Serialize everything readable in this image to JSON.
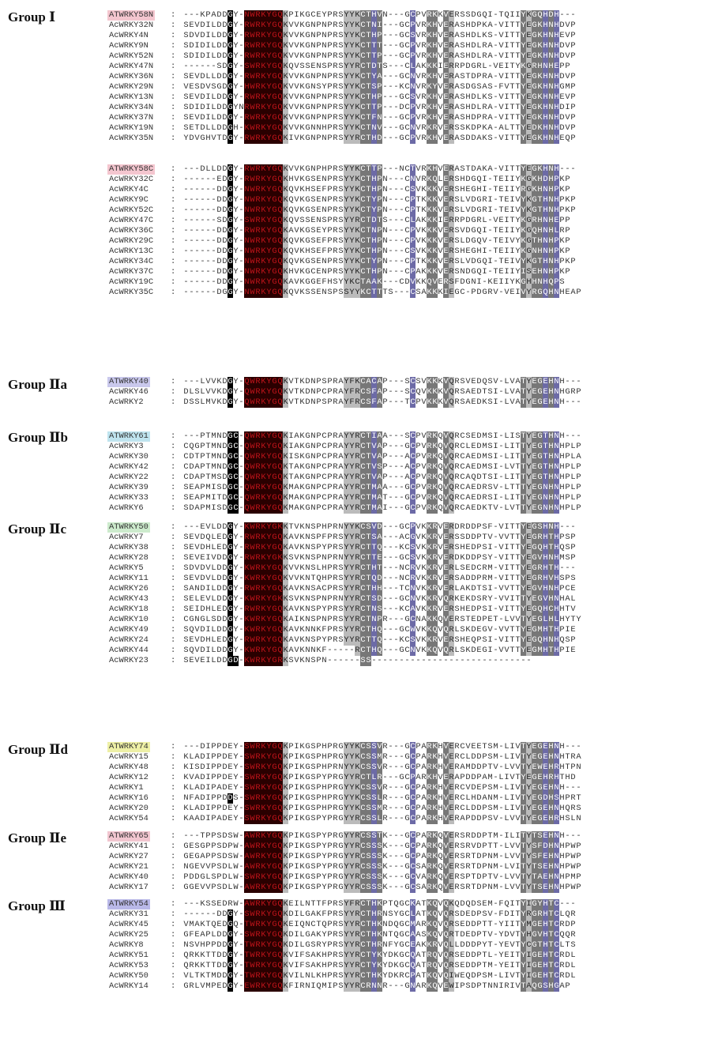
{
  "groups": [
    {
      "label": "Group Ⅰ",
      "color": "#f4c6cf",
      "rows": [
        [
          "ATWRKY58N",
          "---KPADDGY-NWRKYGQKPIKGCEYPRSYYKCTHVN---GCPVRKKVERSSDGQI-TQIIYKGQHDH---"
        ],
        [
          "AcWRKY32N",
          "SEVDILDDGY-RWRKYGQKVVKGNPNPRSYYKCTNI---GCPVRKHVERASHDPKA-VITTYEGKHNHDVP"
        ],
        [
          "AcWRKY4N",
          "SDVDILDDGY-RWRKYGQKVVKGNPNPRSYYKCTHP---GCSVRKHVERASHDLKS-VITTYEGKHNHEVP"
        ],
        [
          "AcWRKY9N",
          "SDIDILDDGY-RWRKYGQKVVKGNPNPRSYYKCTTT---GCPVRKHVERASHDLRA-VITTYEGKHNHDVP"
        ],
        [
          "AcWRKY52N",
          "SDIDILDDGY-RWRKYGQKVVKGNPNPRSYYKCTTP---GCPVRKHVERASHDLRA-VITTYEGKHNHDVP"
        ],
        [
          "AcWRKY47N",
          "------SDGY-SWRKYGQKQVSSENSPRSYYRCTDTS---CLAKKKIERRPDGRL-VEITYKGRHNHEPP"
        ],
        [
          "AcWRKY36N",
          "SEVDLLDDGY-RWRKYGQKVVKGNPNPRSYYKCTYA---GCNVRKHVERASTDPRA-VITTYEGKHNHDVP"
        ],
        [
          "AcWRKY29N",
          "VESDVSGDGY-HWRKYGQKVVKGNSYPRSYYKCTSP---KCNVRKYVERASDGSAS-FVTTYEGKHNHGMP"
        ],
        [
          "AcWRKY13N",
          "SEVDILDDGY-RWRKYGQKVVKGNPNPRSYYKCTHP---GCSVRKHVERASHDLKS-VITTYEGKHNHEVP"
        ],
        [
          "AcWRKY34N",
          "SDIDILDDGYNRWRKYGQKVVKGNPNPRSYYKCTTP---DCPVRKHVERASHDLRA-VITTYEGKHNHDIP"
        ],
        [
          "AcWRKY37N",
          "SEVDILDDGY-RWRKYGQKVVKGNPNPRSYYKCTFN---GCPVRKHVERASHDPRA-VITTYEGKHNHDVP"
        ],
        [
          "AcWRKY19N",
          "SETDLLDDGH-KWRKYGQKVVKGNNHPRSYYKCTNV---GCNVRKRVERSSKDPKA-ALTTYEDKHNHDVP"
        ],
        [
          "AcWRKY35N",
          "YDVGHVTDGY-RWRKYGQKIVKGNPNPRSYYRCTHD---GCPVRKHVERASDDAKS-VITTYEGKHNHEQP"
        ]
      ]
    },
    {
      "label": "",
      "color": "#f4c6cf",
      "rows": [
        [
          "ATWRKY58C",
          "---DLLDDGY-RWRKYGQKVVKGNPHPRSYYKCTTP---NCTVRKHVERASTDAKA-VITTYEGKHNH---"
        ],
        [
          "AcWRKY32C",
          "------EDGY-RWRKYGQKHVKGSENPRSYYKCTHPN---CNVRKQLERSHDGQI-TEIIYKGKHDHPKP"
        ],
        [
          "AcWRKY4C",
          "------DDGY-NWRKYGQKQVKHSEFPRSYYKCTHPN---CSVKKKVERSHEGHI-TEIIYRGKHNHPKP"
        ],
        [
          "AcWRKY9C",
          "------DDGY-NWRKYGQKQVKGSENPRSYYKCTYPN---CPTKKKVERSLVDGRI-TEIVYKGTHNHPKP"
        ],
        [
          "AcWRKY52C",
          "------DDGY-NWRKYGQKQVKGSENPRSYYKCTYPN---CPTKKKVERSLVDGRI-TEIVYKGTHNHPKP"
        ],
        [
          "AcWRKY47C",
          "------SDGY-SWRKYGQKQVSSENSPRSYYRCTDTS---CLAKKKIERRPDGRL-VEITYKGRHNHEPP"
        ],
        [
          "AcWRKY36C",
          "------DDGY-RWRKYGQKAVKGSEYPRSYYKCTNPN---CPVKKKVERSVDGQI-TEIIYKGQHNHLRP"
        ],
        [
          "AcWRKY29C",
          "------DDGY-NWRKYGQKQVKGSEFPRSYYKCTHPN---CPVKKKVERSLDGQV-TEIVYKGTHNHPKP"
        ],
        [
          "AcWRKY13C",
          "------DDGY-NWRKYGQKQVKHSEFPRSYYKCTHPN---CSVKKKVERSHEGHI-TEIIYKGNHNHPKP"
        ],
        [
          "AcWRKY34C",
          "------DDGY-NWRKYGQKQVKGSENPRSYYKCTYPN---CPTKKKVERSLVDGQI-TEIVYKGTHNHPKP"
        ],
        [
          "AcWRKY37C",
          "------DDGY-NWRKYGQKHVKGCENPRSYYKCTHPN---CPAKKKVERSNDGQI-TEIIYISEHNHPKP"
        ],
        [
          "AcWRKY19C",
          "------DDGY-NWRKYGQKAVKGGEFHSYYKCTAAK---CDVKKQVERSFDGNI-KEIIYKGHHNHQPS"
        ],
        [
          "AcWRKY35C",
          "------DGGY-NWRKYGQKQVKSSENSPSSYYKCTTTS---CSAKKKIEGC-PDGRV-VEIVYRGQHNHEAP"
        ]
      ]
    },
    {
      "label": "Group Ⅱa",
      "color": "#c9c8ec",
      "rows": [
        [
          "ATWRKY40",
          "---LVVKDGY-QWRKYGQKVTKDNPSPRAYFKCACAP---SCSVKKKVQRSVEDQSV-LVATYEGEHNH---"
        ],
        [
          "AcWRKY46",
          "DLSLVVKDGY-QWRKYGQKVTKDNPCPRAYFRCSFAP---SCQVKKKVQRSAEDTSI-LVATYEGEHNHGRP"
        ],
        [
          "AcWRKY2",
          "DSSLMVKDGY-QWRKYGQKVTKDNPSPRAYFRCSFAP---TCPVKKKVQRSAEDKSI-LVATYEGEHNH---"
        ]
      ]
    },
    {
      "label": "Group Ⅱb",
      "color": "#bfe4ef",
      "rows": [
        [
          "ATWRKY61",
          "---PTMNDGC-QWRKYGQKIAKGNPCPRAYYRCTIAA---SCPVRKQVQRCSEDMSI-LISTYEGTHNH---"
        ],
        [
          "AcWRKY3",
          "CQGPTMNDGC-QWRKYGQKIAKGNPCPRAYYRCTVAP---GCPVRKQVQRCLEDMSI-LITTYEGTHNHPLP"
        ],
        [
          "AcWRKY30",
          "CDTPTMNDGC-QWRKYGQKISKGNPCPRAYYRCTVAP---ACPVRKQVQRCAEDMSI-LITTYEGTHNHPLA"
        ],
        [
          "AcWRKY42",
          "CDAPTMNDGC-QWRKYGQKTAKGNPCPRAYYRCTVSP---ACPVRKQVQRCAEDMSI-LVTTYEGTHNHPLP"
        ],
        [
          "AcWRKY22",
          "CDAPTMSDGC-QWRKYGQKTAKGNPCPRAYYRCTVAP---ACPVRKQVQRCAQDTSI-LITTYEGTHNHPLP"
        ],
        [
          "AcWRKY39",
          "SEAPMISDGC-QWRKYGQKMAKGNPCPRAYYRCTMAA---GCPVRKQVQRCAEDRSV-LTTTYEGNHNHPLP"
        ],
        [
          "AcWRKY33",
          "SEAPMITDGC-QWRKYGQKMAKGNPCPRAYYRCTMAT---GCPVRKQVQRCAEDRSI-LITTYEGNHNHPLP"
        ],
        [
          "AcWRKY6",
          "SDAPMISDGC-QWRKYGQKMAKGNPCPRAYYRCTMAI---GCPVRKQVQRCAEDKTV-LVTTYEGNHNHPLP"
        ]
      ]
    },
    {
      "label": "Group Ⅱc",
      "color": "#cdebcd",
      "rows": [
        [
          "ATWRKY50",
          "---EVLDDGY-KWRKYGKKTVKNSPHPRNYYKCSVD---GCPVKKRVERDRDDPSF-VITTYEGSHNH---"
        ],
        [
          "AcWRKY7",
          "SEVDQLEDGY-RWRKYGQKAVKNSPFPRSYYRCTSA---ACGVKKRVERSSDDPTV-VVTTYEGRHTHPSP"
        ],
        [
          "AcWRKY38",
          "SEVDHLEDGY-RWRKYGQKAVKNSPYPRSYYRCTTQ---KCSVKKRVERSHEDPSI-VITTYEGQHTHQSP"
        ],
        [
          "AcWRKY28",
          "SEVEIVDDGY-RWRKYGKKSVKNSPNPRNYYRCTTE---GCSVKKRVERDKDDPSY-VITTYEGVHNHMSP"
        ],
        [
          "AcWRKY5",
          "SDVDVLDDGY-KWRKYGQKVVKNSLHPRSYYRCTHT---NCRVKKRVERLSEDCRM-VITTYEGRHTH---"
        ],
        [
          "AcWRKY11",
          "SEVDVLDDGY-KWRKYGQKVVKNTQHPRSYYRCTQD---NCRVKKRVERSADDPRM-VITTYEGRHVHSPS"
        ],
        [
          "AcWRKY26",
          "SANDILDDGY-RWRKYGQKAVKNSACPRSYYRCTHH---TCNVKKRVERLAKDTSI-VVTTYEGVHNHPCE"
        ],
        [
          "AcWRKY43",
          "SELEVLDDGY-KWRKYGKKSVKNSPNPRNYYRCTSD---GCNVKKRVQRKEKDSRY-VVITTYEGVHNHAL"
        ],
        [
          "AcWRKY18",
          "SEIDHLEDGY-RWRKYGQKAVKNSPYPRSYYRCTNS---KCAVKKRVERSHEDPSI-VITTYEGQHCHHTV"
        ],
        [
          "AcWRKY10",
          "CGNGLSDDGY-KWRKYGQKAIKNSPNPRSYYRCTNPR---GCNAKKQVERSTEDPET-LVVTYEGLHLHYTY"
        ],
        [
          "AcWRKY49",
          "SQVDILDDGY-KWRKYGQKAVKNNKFPRSYYRCTHQ---GCWVKKQVQRLSKDEGV-VVTTYEGMHTHPIE"
        ],
        [
          "AcWRKY24",
          "SEVDHLEDGY-RWRKYGQKAVKNSPYPRSYYRCTTQ---KCSVKKRVERSHEQPSI-VITTYEGQHNHQSP"
        ],
        [
          "AcWRKY44",
          "SQVDILDDGY-KWRKYGQKAVKNNKF-----RCTHQ---GCNVKKQVQRLSKDEGI-VVTTYEGMHTHPIE"
        ],
        [
          "AcWRKY23",
          "SEVEILDDGD-KWRKYGRKSVKNSPN------SS-----------------------------"
        ]
      ]
    },
    {
      "label": "Group Ⅱd",
      "color": "#eef0a6",
      "rows": [
        [
          "ATWRKY74",
          "---DIPPDEY-SWRKYGQKPIKGSPHPRGYYKCSSVR---GCPARKHVERCVEETSM-LIVTYEGEHNH---"
        ],
        [
          "AcWRKY15",
          "KLADIPPDEY-SWRKYGQKPIKGSPHPRGYYKCSSMR---GCPARKHVERCLDDPSM-LIVTYEGEHNHTRA"
        ],
        [
          "AcWRKY48",
          "KISDIPPDEY-SWRKYGQKPIKGSPHPRNYYKCSSVR---GCPARKHVERAMDDPTV-LVVTYEWEHRHTPN"
        ],
        [
          "AcWRKY12",
          "KVADIPPDEY-SWRKYGQKPIKGSPYPRGYYRCTLR---GCPARKHVERAPDDPAM-LIVTYEGEHRHTHD"
        ],
        [
          "AcWRKY1",
          "KLADIPADEY-SWRKYGQKPIKGSPHPRGYYKCSSVR---GCPARKHVERCVDEPSM-LIVTYEGEHNH---"
        ],
        [
          "AcWRKY16",
          "NFADIPPDDS-SWRKYGQKPIKGSPHPRGYYKCSSLR---GCPARKHVERCLHDANM-LIVTYEGDHSHPRT"
        ],
        [
          "AcWRKY20",
          "KLADIPPDEY-SWRKYGQKPIKGSPHPRGYYKCSSMR---GCPARKHVERCLDDPSM-LIVTYEGEHNHQRS"
        ],
        [
          "AcWRKY54",
          "KAADIPADEY-SWRKYGQKPIKGSPYPRGYYRCSSLR---GCPARKHVERAPDDPSV-LVVTYEGEHRHSLN"
        ]
      ]
    },
    {
      "label": "Group Ⅱe",
      "color": "#f2c6d0",
      "rows": [
        [
          "ATWRKY65",
          "---TPPSDSW-AWRKYGQKPIKGSPYPRGYYRCSSTK---GCPARKQVERSRDDPTM-ILITYTSEHNH---"
        ],
        [
          "AcWRKY41",
          "GESGPPSDPW-AWRKYGQKPIKGSPYPRGYYRCSSSK---GCPARKQVERSRVDPTT-LVVTYSFDHNHPWP"
        ],
        [
          "AcWRKY27",
          "GEGAPPSDSW-AWRKYGQKPIKGSPYPRGYYRCSSSK---GCPARKQVERSRTDPNM-LVVTYSFEHNHPWP"
        ],
        [
          "AcWRKY21",
          "NGEVVPSDLW-AWRKYGQKPIKGSPYPRGYYRCSSSK---GCSARKQVERSRTDPNM-LVITYTSEHNHPWP"
        ],
        [
          "AcWRKY40",
          "PDDGLSPDLW-SWRKYGQKPIKGSPYPRGYYRCSSSK---GCVARKQVERSPTDPTV-LVVTYTAEHNHPMP"
        ],
        [
          "AcWRKY17",
          "GGEVVPSDLW-AWRKYGQKPIKGSPYPRGYYRCSSSK---GCSARKQVERSRTDPNM-LVVTYTSEHNHPWP"
        ]
      ]
    },
    {
      "label": "Group Ⅲ",
      "color": "#b9b8e8",
      "rows": [
        [
          "ATWRKY54",
          "---KSSEDRW-AWRKYGQKEILNTTFPRSYFRCTHKPTQGCKATKQVQKQDQDSEM-FQITYIGYHTC---"
        ],
        [
          "AcWRKY31",
          "------DDGY-SWRKYGQKDILGAKFPRSYYRCTHRNSYGCLATKQVQRSDEDPSV-FDITYRGRHTCLQR"
        ],
        [
          "AcWRKY45",
          "VMAKTQEDGQ-TWRKYGQKEIQNCTQPRSYYRCTHKNDQGCMARKQVQRSEDDPTT-YIITYMGEHTCRDP"
        ],
        [
          "AcWRKY25",
          "GFEAPLDDGY-SWRKYGQKDILGAKYPRSYYRCTHKNTQGCAASKQVQRTDEDPTV-YDVTYHGVHTCQQR"
        ],
        [
          "AcWRKY8",
          "NSVHPPDDGY-TWRKYGQKDILGSRYPRSYYRCTHRNFYGCEAKKRVQLLDDDPYT-YEVTYCGTHTCLTS"
        ],
        [
          "AcWRKY51",
          "QRKKTTDDGY-TWRKYGQKVIFSAKHPRSYYRCTYKYDKGCQATRQVQRSEDDPTL-YEITYIGEHTCRDL"
        ],
        [
          "AcWRKY53",
          "QRKKTTDDGY-TWRKYGQKVIFSAKHPRSYYRCTYKYDKGCQATRQVQRSEDDPTM-YEITYIGEHTCRDL"
        ],
        [
          "AcWRKY50",
          "VLTKTMDDGY-TWRKYGQKVILNLKHPRSYYRCTHKYDKRCPATKQVQIWEQDPSM-LIVTYIGEHTCRDL"
        ],
        [
          "AcWRKY14",
          "GRLVMPEDGY-EWRKYGQKFIRNIQMIPSYYRCRNNR---GNARKQVEWIPSDPTNNIRIVTAQGSHGAP"
        ]
      ]
    }
  ]
}
